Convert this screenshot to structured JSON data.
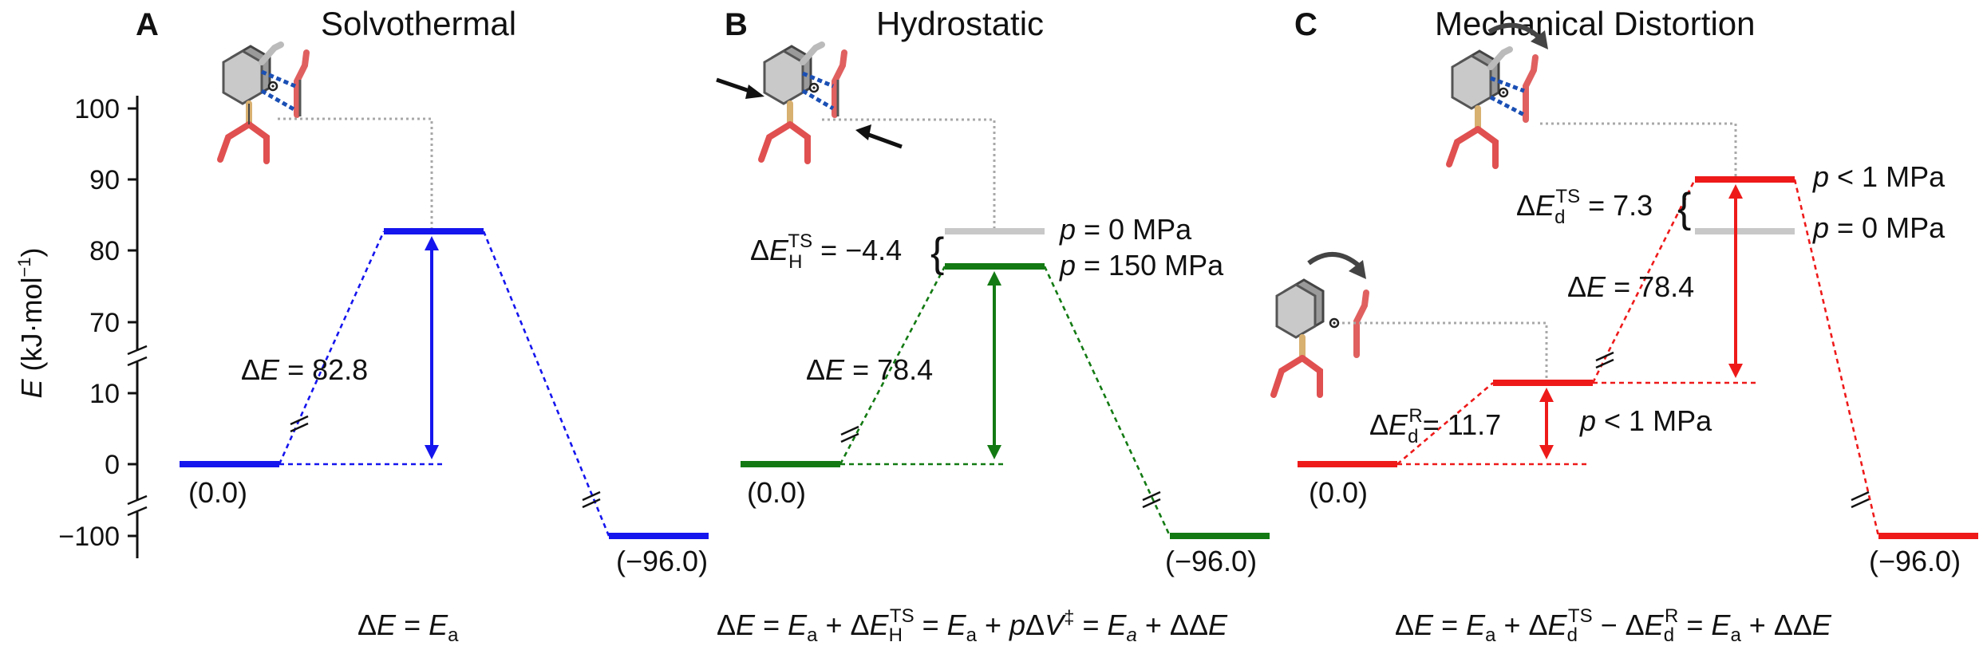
{
  "colors": {
    "blue": "#1515ee",
    "green": "#137a13",
    "red": "#ee1a1a",
    "grey": "#c8c8c8",
    "ink": "#111111"
  },
  "axis": {
    "ylabel_main": "E",
    "ylabel_rest": " (kJ·mol",
    "ylabel_exp": "−1",
    "ylabel_close": ")",
    "ticks": [
      "100",
      "90",
      "80",
      "70",
      "10",
      "0",
      "−100"
    ]
  },
  "panels": {
    "A": {
      "letter": "A",
      "title": "Solvothermal",
      "reactant": "(0.0)",
      "product": "(−96.0)",
      "dE_label": "Δ",
      "dE_italic": "E",
      "dE_value": " = 82.8",
      "eq": {
        "p1": "Δ",
        "p2": "E",
        "p3": " = ",
        "p4": "E",
        "p5": "a"
      }
    },
    "B": {
      "letter": "B",
      "title": "Hydrostatic",
      "reactant": "(0.0)",
      "product": "(−96.0)",
      "dE_label": "Δ",
      "dE_italic": "E",
      "dE_value": " = 78.4",
      "dEH_delta": "Δ",
      "dEH_E": "E",
      "dEH_sub": "H",
      "dEH_sup": "TS",
      "dEH_value": " = −4.4",
      "brace": "{",
      "p_top_p": "p",
      "p_top_rest": " = 0 MPa",
      "p_bot_p": "p",
      "p_bot_rest": " = 150 MPa",
      "eq": {
        "e1": "Δ",
        "e2": "E",
        "e3": " = ",
        "e4": "E",
        "e5": "a",
        "e6": " + Δ",
        "e7": "E",
        "e8": "H",
        "e9": "TS",
        "e10": " = ",
        "e11": "E",
        "e12": "a",
        "e13": " + ",
        "e14": "p",
        "e15": "Δ",
        "e16": "V",
        "e17": "‡",
        "e18": " = ",
        "e19": "E",
        "e20": "a",
        "e21": " + ΔΔ",
        "e22": "E"
      }
    },
    "C": {
      "letter": "C",
      "title": "Mechanical Distortion",
      "reactant": "(0.0)",
      "product": "(−96.0)",
      "dE_label": "Δ",
      "dE_italic": "E",
      "dE_value": " = 78.4",
      "dEdR_delta": "Δ",
      "dEdR_E": "E",
      "dEdR_sub": "d",
      "dEdR_sup": "R",
      "dEdR_value": "= 11.7",
      "dEdTS_delta": "Δ",
      "dEdTS_E": "E",
      "dEdTS_sub": "d",
      "dEdTS_sup": "TS",
      "dEdTS_value": " = 7.3",
      "brace": "{",
      "p_mid_p": "p",
      "p_mid_rest": " < 1 MPa",
      "p_top_p": "p",
      "p_top_rest": " < 1 MPa",
      "p_bot_p": "p",
      "p_bot_rest": " = 0 MPa",
      "eq": {
        "e1": "Δ",
        "e2": "E",
        "e3": " = ",
        "e4": "E",
        "e5": "a",
        "e6": " + Δ",
        "e7": "E",
        "e8": "d",
        "e9": "TS",
        "e10": " − Δ",
        "e11": "E",
        "e12": "d",
        "e13": "R",
        "e14": " = ",
        "e15": "E",
        "e16": "a",
        "e17": " + ΔΔ",
        "e18": "E"
      }
    }
  }
}
